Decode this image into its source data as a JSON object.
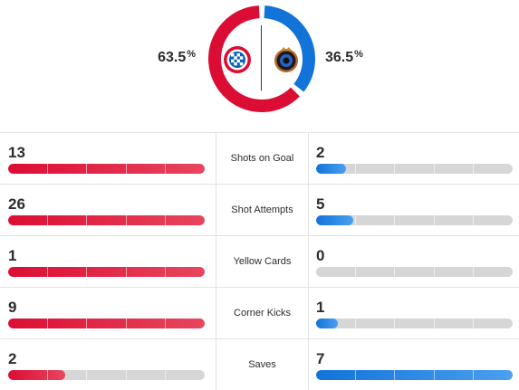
{
  "possession": {
    "home_value": "63.5",
    "away_value": "36.5",
    "percent_symbol": "%",
    "home_fraction": 0.635,
    "away_fraction": 0.365
  },
  "colors": {
    "home": "#dc0d34",
    "away": "#1273d9",
    "track": "#d6d6d6"
  },
  "teams": {
    "home_logo_icon": "bayern-munich-crest-icon",
    "away_logo_icon": "club-brugge-crest-icon"
  },
  "stats": [
    {
      "label": "Shots on Goal",
      "home": "13",
      "away": "2",
      "home_fraction": 1.0,
      "away_fraction": 0.15
    },
    {
      "label": "Shot Attempts",
      "home": "26",
      "away": "5",
      "home_fraction": 1.0,
      "away_fraction": 0.19
    },
    {
      "label": "Yellow Cards",
      "home": "1",
      "away": "0",
      "home_fraction": 1.0,
      "away_fraction": 0.0
    },
    {
      "label": "Corner Kicks",
      "home": "9",
      "away": "1",
      "home_fraction": 1.0,
      "away_fraction": 0.11
    },
    {
      "label": "Saves",
      "home": "2",
      "away": "7",
      "home_fraction": 0.29,
      "away_fraction": 1.0
    }
  ]
}
